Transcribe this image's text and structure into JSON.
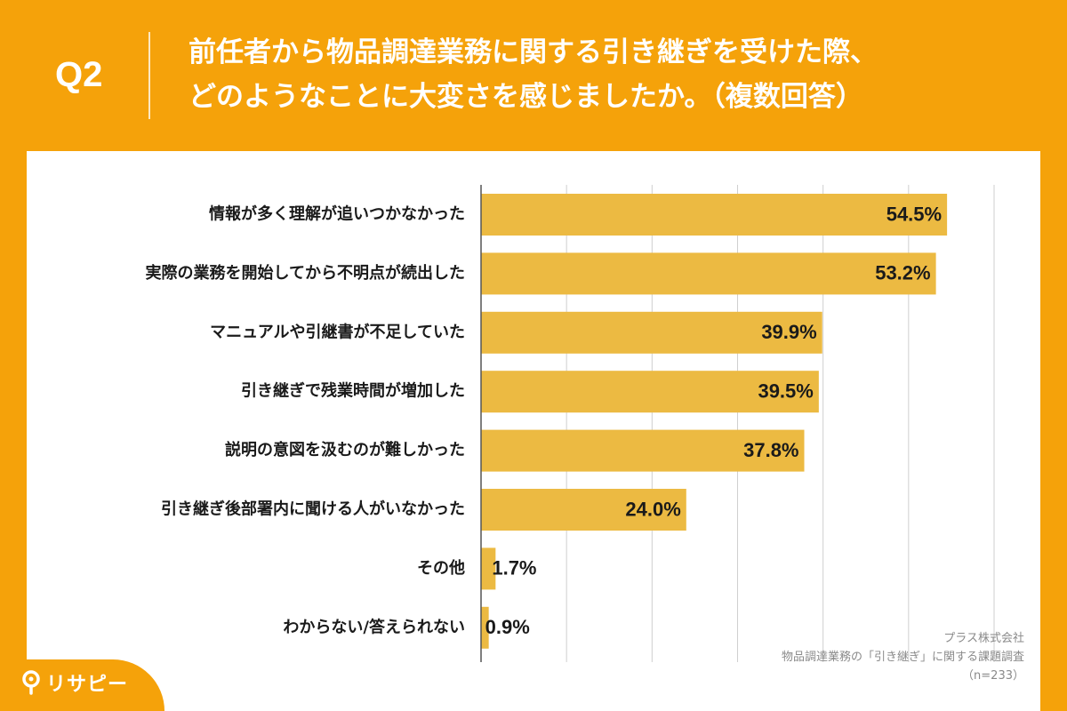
{
  "header": {
    "question_label": "Q2",
    "title_line1": "前任者から物品調達業務に関する引き継ぎを受けた際、",
    "title_line2": "どのようなことに大変さを感じましたか。（複数回答）"
  },
  "colors": {
    "background": "#f5a20a",
    "bar": "#ecba42",
    "card": "#ffffff",
    "grid": "#cfcfcf",
    "axis": "#555555",
    "text": "#1a1a1a"
  },
  "chart_data": {
    "type": "bar",
    "orientation": "horizontal",
    "categories": [
      "情報が多く理解が追いつかなかった",
      "実際の業務を開始してから不明点が続出した",
      "マニュアルや引継書が不足していた",
      "引き継ぎで残業時間が増加した",
      "説明の意図を汲むのが難しかった",
      "引き継ぎ後部署内に聞ける人がいなかった",
      "その他",
      "わからない/答えられない"
    ],
    "values": [
      54.5,
      53.2,
      39.9,
      39.5,
      37.8,
      24.0,
      1.7,
      0.9
    ],
    "value_labels": [
      "54.5%",
      "53.2%",
      "39.9%",
      "39.5%",
      "37.8%",
      "24.0%",
      "1.7%",
      "0.9%"
    ],
    "xlim": [
      0,
      60
    ],
    "grid": true,
    "legend": "none"
  },
  "footer": {
    "company": "プラス株式会社",
    "survey": "物品調達業務の「引き継ぎ」に関する課題調査",
    "sample": "（n=233）"
  },
  "brand": {
    "logo_text": "リサピー",
    "logo_icon": "pin-icon"
  }
}
